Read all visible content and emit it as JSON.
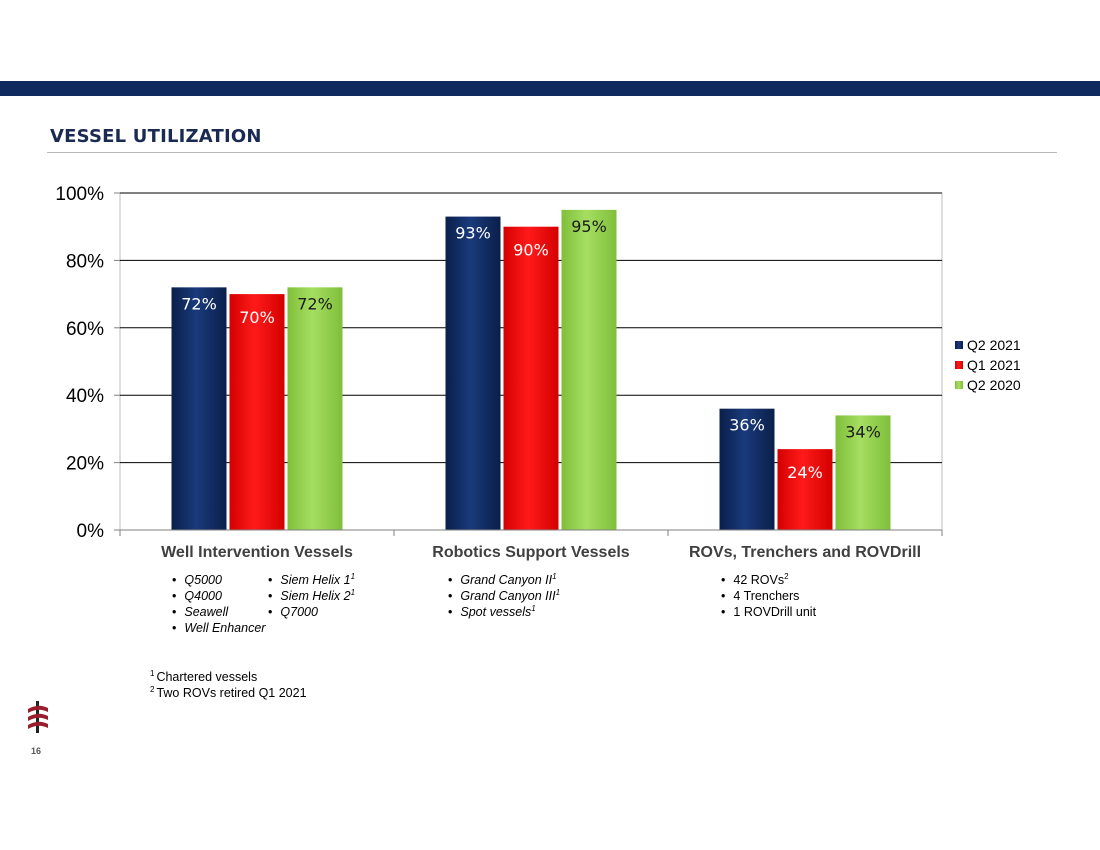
{
  "slide": {
    "title": "VESSEL UTILIZATION",
    "page_number": "16"
  },
  "chart_data": {
    "type": "bar",
    "categories": [
      "Well Intervention Vessels",
      "Robotics Support Vessels",
      "ROVs, Trenchers and ROVDrill"
    ],
    "series": [
      {
        "name": "Q2 2021",
        "color": "#0f2a60",
        "values": [
          72,
          93,
          36
        ],
        "labels": [
          "72%",
          "93%",
          "36%"
        ]
      },
      {
        "name": "Q1 2021",
        "color": "#ff0000",
        "values": [
          70,
          90,
          24
        ],
        "labels": [
          "70%",
          "90%",
          "24%"
        ]
      },
      {
        "name": "Q2 2020",
        "color": "#92d050",
        "values": [
          72,
          95,
          34
        ],
        "labels": [
          "72%",
          "95%",
          "34%"
        ]
      }
    ],
    "ylim": [
      0,
      100
    ],
    "yticks": [
      0,
      20,
      40,
      60,
      80,
      100
    ],
    "ytick_labels": [
      "0%",
      "20%",
      "40%",
      "60%",
      "80%",
      "100%"
    ],
    "grid": true,
    "legend": "right"
  },
  "details": {
    "wiv_col1": [
      "Q5000",
      "Q4000",
      "Seawell",
      "Well Enhancer"
    ],
    "wiv_col2": [
      {
        "text": "Siem Helix 1",
        "sup": "1"
      },
      {
        "text": "Siem Helix 2",
        "sup": "1"
      },
      {
        "text": "Q7000",
        "sup": ""
      }
    ],
    "rsv": [
      {
        "text": "Grand Canyon II",
        "sup": "1"
      },
      {
        "text": "Grand Canyon III",
        "sup": "1"
      },
      {
        "text": "Spot vessels",
        "sup": "1"
      }
    ],
    "rov": [
      {
        "text": "42 ROVs",
        "sup": "2"
      },
      {
        "text": "4 Trenchers",
        "sup": ""
      },
      {
        "text": "1 ROVDrill unit",
        "sup": ""
      }
    ]
  },
  "footnotes": [
    {
      "sup": "1",
      "text": "Chartered vessels"
    },
    {
      "sup": "2",
      "text": "Two ROVs retired Q1 2021"
    }
  ]
}
